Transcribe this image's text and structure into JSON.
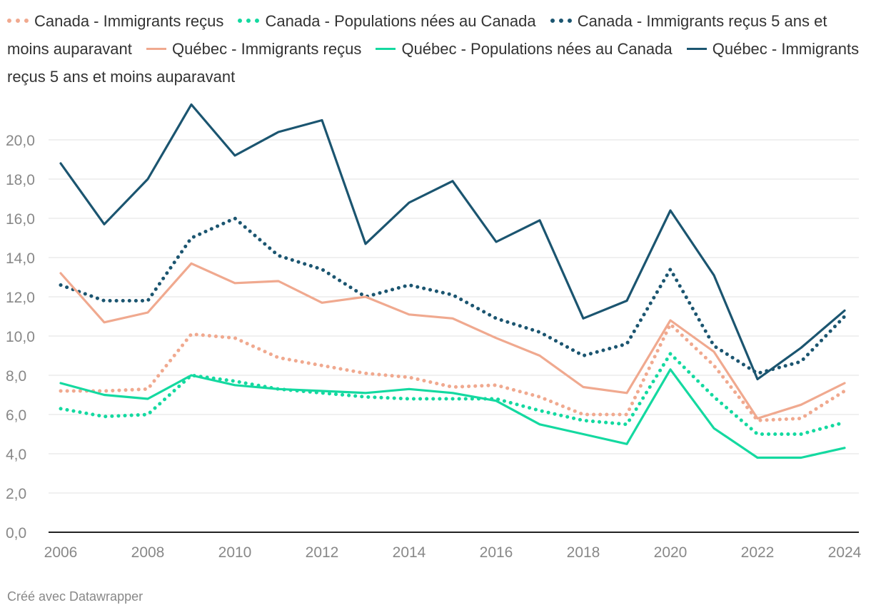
{
  "chart_data": {
    "type": "line",
    "x": [
      2006,
      2007,
      2008,
      2009,
      2010,
      2011,
      2012,
      2013,
      2014,
      2015,
      2016,
      2017,
      2018,
      2019,
      2020,
      2021,
      2022,
      2023,
      2024
    ],
    "xticks": [
      2006,
      2008,
      2010,
      2012,
      2014,
      2016,
      2018,
      2020,
      2022,
      2024
    ],
    "xtick_labels": [
      "2006",
      "2008",
      "2010",
      "2012",
      "2014",
      "2016",
      "2018",
      "2020",
      "2022",
      "2024"
    ],
    "yticks": [
      0,
      2,
      4,
      6,
      8,
      10,
      12,
      14,
      16,
      18,
      20
    ],
    "ytick_labels": [
      "0,0",
      "2,0",
      "4,0",
      "6,0",
      "8,0",
      "10,0",
      "12,0",
      "14,0",
      "16,0",
      "18,0",
      "20,0"
    ],
    "ylim": [
      0,
      22
    ],
    "grid": true,
    "legend_position": "top",
    "series": [
      {
        "name": "Canada - Immigrants reçus",
        "style": "dotted",
        "color": "#f0a98f",
        "values": [
          7.2,
          7.2,
          7.3,
          10.1,
          9.9,
          8.9,
          8.5,
          8.1,
          7.9,
          7.4,
          7.5,
          6.9,
          6.0,
          6.0,
          10.6,
          8.5,
          5.7,
          5.8,
          7.2
        ]
      },
      {
        "name": "Canada - Populations nées au Canada",
        "style": "dotted",
        "color": "#14d9a0",
        "values": [
          6.3,
          5.9,
          6.0,
          8.0,
          7.7,
          7.3,
          7.1,
          6.9,
          6.8,
          6.8,
          6.8,
          6.2,
          5.7,
          5.5,
          9.1,
          6.9,
          5.0,
          5.0,
          5.6
        ]
      },
      {
        "name": "Canada - Immigrants reçus 5 ans et moins auparavant",
        "style": "dotted",
        "color": "#1b5570",
        "values": [
          12.6,
          11.8,
          11.8,
          15.0,
          16.0,
          14.1,
          13.4,
          12.0,
          12.6,
          12.1,
          10.9,
          10.2,
          9.0,
          9.6,
          13.4,
          9.5,
          8.1,
          8.7,
          11.0
        ]
      },
      {
        "name": "Québec - Immigrants reçus",
        "style": "solid",
        "color": "#f0a98f",
        "values": [
          13.2,
          10.7,
          11.2,
          13.7,
          12.7,
          12.8,
          11.7,
          12.0,
          11.1,
          10.9,
          9.9,
          9.0,
          7.4,
          7.1,
          10.8,
          9.2,
          5.8,
          6.5,
          7.6
        ]
      },
      {
        "name": "Québec - Populations nées au Canada",
        "style": "solid",
        "color": "#14d9a0",
        "values": [
          7.6,
          7.0,
          6.8,
          8.0,
          7.5,
          7.3,
          7.2,
          7.1,
          7.3,
          7.1,
          6.7,
          5.5,
          5.0,
          4.5,
          8.3,
          5.3,
          3.8,
          3.8,
          4.3
        ]
      },
      {
        "name": "Québec - Immigrants reçus 5 ans et moins auparavant",
        "style": "solid",
        "color": "#1b5570",
        "values": [
          18.8,
          15.7,
          18.0,
          21.8,
          19.2,
          20.4,
          21.0,
          14.7,
          16.8,
          17.9,
          14.8,
          15.9,
          10.9,
          11.8,
          16.4,
          13.1,
          7.8,
          9.4,
          11.3
        ]
      }
    ]
  },
  "credit": "Créé avec Datawrapper"
}
